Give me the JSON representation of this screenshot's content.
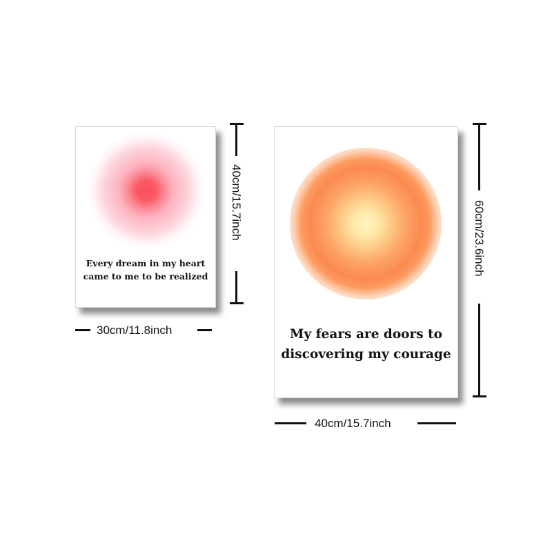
{
  "posters": [
    {
      "quote": "Every dream in my heart came to me to be realized",
      "width_label": "30cm/11.8inch",
      "height_label": "40cm/15.7inch",
      "aura_colors": [
        "#f7515d",
        "#fdb5c0",
        "#fdd7de"
      ]
    },
    {
      "quote": "My fears are doors to discovering my courage",
      "width_label": "40cm/15.7inch",
      "height_label": "60cm/23.6inch",
      "aura_colors": [
        "#fff6c2",
        "#fca265",
        "#fb8a4e"
      ]
    }
  ]
}
